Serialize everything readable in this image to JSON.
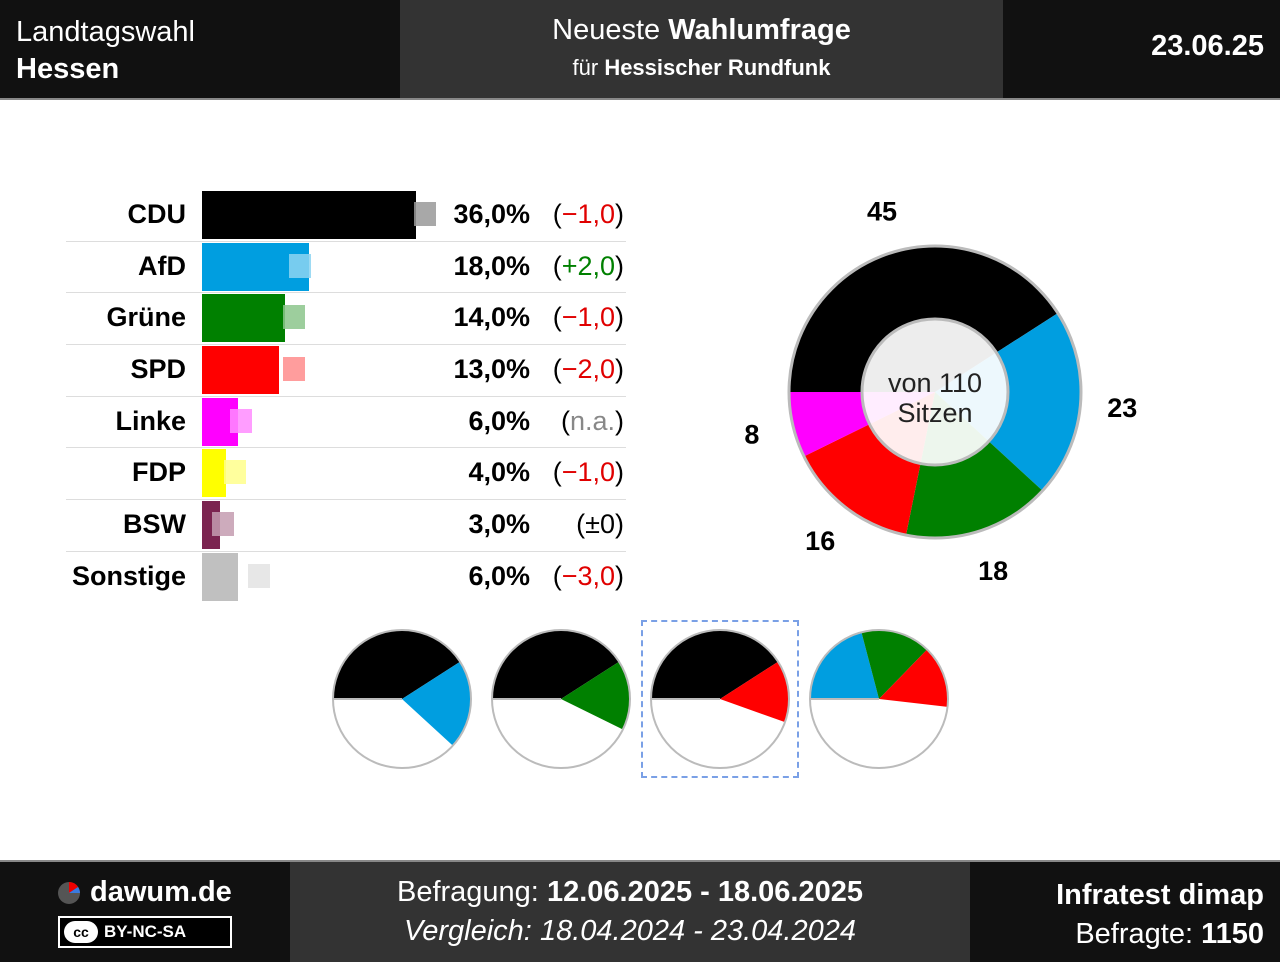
{
  "header": {
    "election_line1": "Landtagswahl",
    "election_line2": "Hessen",
    "title_prefix": "Neueste",
    "title_bold": "Wahlumfrage",
    "subtitle_prefix": "für",
    "subtitle_bold": "Hessischer Rundfunk",
    "date": "23.06.25"
  },
  "chart_data": [
    {
      "type": "bar",
      "orientation": "horizontal",
      "categories": [
        "CDU",
        "AfD",
        "Grüne",
        "SPD",
        "Linke",
        "FDP",
        "BSW",
        "Sonstige"
      ],
      "values": [
        36.0,
        18.0,
        14.0,
        13.0,
        6.0,
        4.0,
        3.0,
        6.0
      ],
      "previous_values": [
        37.0,
        16.0,
        15.0,
        15.0,
        null,
        5.0,
        3.0,
        9.0
      ],
      "value_labels": [
        "36,0%",
        "18,0%",
        "14,0%",
        "13,0%",
        "6,0%",
        "4,0%",
        "3,0%",
        "6,0%"
      ],
      "change_labels": [
        "−1,0",
        "+2,0",
        "−1,0",
        "−2,0",
        "n.a.",
        "−1,0",
        "±0",
        "−3,0"
      ],
      "change_types": [
        "neg",
        "pos",
        "neg",
        "neg",
        "na",
        "neg",
        "zero",
        "neg"
      ],
      "colors": [
        "#000000",
        "#009ee0",
        "#008000",
        "#ff0000",
        "#ff00ff",
        "#ffff00",
        "#7b2450",
        "#c0c0c0"
      ],
      "xlim": [
        0,
        36
      ]
    },
    {
      "type": "pie",
      "subtype": "donut",
      "categories": [
        "CDU",
        "AfD",
        "Grüne",
        "SPD",
        "Linke"
      ],
      "values": [
        45,
        23,
        18,
        16,
        8
      ],
      "colors": [
        "#000000",
        "#009ee0",
        "#008000",
        "#ff0000",
        "#ff00ff"
      ],
      "center_line1": "von 110",
      "center_line2": "Sitzen"
    }
  ],
  "coalitions": [
    {
      "parties": [
        "CDU",
        "AfD"
      ],
      "seats": [
        45,
        23
      ],
      "colors": [
        "#000000",
        "#009ee0"
      ],
      "selected": false
    },
    {
      "parties": [
        "CDU",
        "Grüne"
      ],
      "seats": [
        45,
        18
      ],
      "colors": [
        "#000000",
        "#008000"
      ],
      "selected": false
    },
    {
      "parties": [
        "CDU",
        "SPD"
      ],
      "seats": [
        45,
        16
      ],
      "colors": [
        "#000000",
        "#ff0000"
      ],
      "selected": true
    },
    {
      "parties": [
        "AfD",
        "Grüne",
        "SPD"
      ],
      "seats": [
        23,
        18,
        16
      ],
      "colors": [
        "#009ee0",
        "#008000",
        "#ff0000"
      ],
      "selected": false
    }
  ],
  "coalition_total_seats": 110,
  "footer": {
    "site": "dawum.de",
    "license": "BY-NC-SA",
    "cc_glyph": "cc",
    "survey_label": "Befragung:",
    "survey_period": "12.06.2025 - 18.06.2025",
    "compare_label": "Vergleich:",
    "compare_period": "18.04.2024 - 23.04.2024",
    "institute": "Infratest dimap",
    "respondents_label": "Befragte:",
    "respondents": "1150"
  }
}
